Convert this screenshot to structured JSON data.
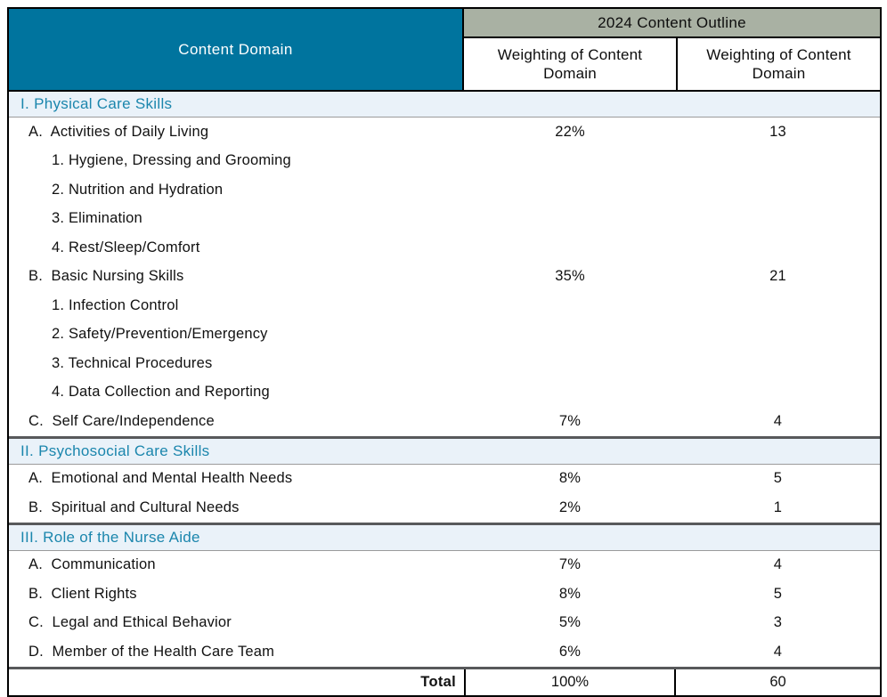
{
  "table": {
    "header": {
      "content_domain_label": "Content Domain",
      "outline_title": "2024 Content Outline",
      "weighting_col_1": "Weighting of Content Domain",
      "weighting_col_2": "Weighting of Content Domain"
    },
    "sections": [
      {
        "title": "I. Physical Care Skills",
        "rows": [
          {
            "label": "A.  Activities of Daily Living",
            "pct": "22%",
            "count": "13",
            "level": 1
          },
          {
            "label": "1. Hygiene, Dressing and Grooming",
            "level": 2
          },
          {
            "label": "2. Nutrition and Hydration",
            "level": 2
          },
          {
            "label": "3. Elimination",
            "level": 2
          },
          {
            "label": "4. Rest/Sleep/Comfort",
            "level": 2
          },
          {
            "label": "B.  Basic Nursing Skills",
            "pct": "35%",
            "count": "21",
            "level": 1
          },
          {
            "label": "1. Infection Control",
            "level": 2
          },
          {
            "label": "2. Safety/Prevention/Emergency",
            "level": 2
          },
          {
            "label": "3. Technical Procedures",
            "level": 2
          },
          {
            "label": "4. Data Collection and Reporting",
            "level": 2
          },
          {
            "label": "C.  Self Care/Independence",
            "pct": "7%",
            "count": "4",
            "level": 1
          }
        ]
      },
      {
        "title": "II. Psychosocial Care Skills",
        "rows": [
          {
            "label": "A.  Emotional and Mental Health Needs",
            "pct": "8%",
            "count": "5",
            "level": 1
          },
          {
            "label": "B.  Spiritual and Cultural Needs",
            "pct": "2%",
            "count": "1",
            "level": 1
          }
        ]
      },
      {
        "title": "III. Role of the Nurse Aide",
        "rows": [
          {
            "label": "A.  Communication",
            "pct": "7%",
            "count": "4",
            "level": 1
          },
          {
            "label": "B.  Client Rights",
            "pct": "8%",
            "count": "5",
            "level": 1
          },
          {
            "label": "C.  Legal and Ethical Behavior",
            "pct": "5%",
            "count": "3",
            "level": 1
          },
          {
            "label": "D.  Member of the Health Care Team",
            "pct": "6%",
            "count": "4",
            "level": 1
          }
        ]
      }
    ],
    "total_row": {
      "label": "Total",
      "pct": "100%",
      "count": "60"
    }
  },
  "colors": {
    "header_teal": "#00749E",
    "header_olive": "#A9B1A3",
    "section_bg": "#EAF2F9",
    "section_text": "#1B86AD",
    "thick_divider_gray": "#58595B",
    "border_black": "#000000"
  }
}
